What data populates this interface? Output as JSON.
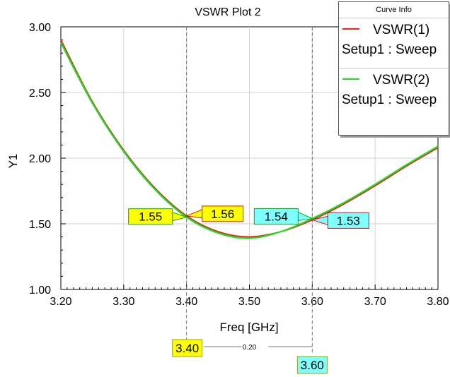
{
  "chart_data": {
    "type": "line",
    "title": "VSWR Plot 2",
    "xlabel": "Freq [GHz]",
    "ylabel": "Y1",
    "xlim": [
      3.2,
      3.8
    ],
    "ylim": [
      1.0,
      3.0
    ],
    "x_ticks": [
      "3.20",
      "3.30",
      "3.40",
      "3.50",
      "3.60",
      "3.70",
      "3.80"
    ],
    "y_ticks": [
      "1.00",
      "1.50",
      "2.00",
      "2.50",
      "3.00"
    ],
    "grid": true,
    "series": [
      {
        "name": "VSWR(1)",
        "subtitle": "Setup1 : Sweep",
        "color": "#e8231f",
        "x": [
          3.2,
          3.25,
          3.3,
          3.35,
          3.4,
          3.45,
          3.5,
          3.55,
          3.6,
          3.65,
          3.7,
          3.75,
          3.8
        ],
        "y": [
          2.9,
          2.43,
          2.06,
          1.77,
          1.56,
          1.44,
          1.4,
          1.44,
          1.53,
          1.65,
          1.79,
          1.94,
          2.08
        ]
      },
      {
        "name": "VSWR(2)",
        "subtitle": "Setup1 : Sweep",
        "color": "#22dd22",
        "x": [
          3.2,
          3.25,
          3.3,
          3.35,
          3.4,
          3.45,
          3.5,
          3.55,
          3.6,
          3.65,
          3.7,
          3.75,
          3.8
        ],
        "y": [
          2.88,
          2.42,
          2.05,
          1.76,
          1.55,
          1.43,
          1.39,
          1.44,
          1.54,
          1.66,
          1.8,
          1.95,
          2.09
        ]
      }
    ],
    "markers": [
      {
        "x": 3.4,
        "label": "3.40",
        "color": "#ffff00",
        "y_labels": [
          {
            "value": 1.56,
            "text": "1.56",
            "series": 0,
            "side": "right"
          },
          {
            "value": 1.55,
            "text": "1.55",
            "series": 1,
            "side": "left"
          }
        ]
      },
      {
        "x": 3.6,
        "label": "3.60",
        "color": "#7fffff",
        "y_labels": [
          {
            "value": 1.53,
            "text": "1.53",
            "series": 0,
            "side": "right"
          },
          {
            "value": 1.54,
            "text": "1.54",
            "series": 1,
            "side": "left"
          }
        ]
      }
    ],
    "delta_label": "0.20",
    "legend": {
      "title": "Curve Info",
      "position": "top-right"
    }
  }
}
